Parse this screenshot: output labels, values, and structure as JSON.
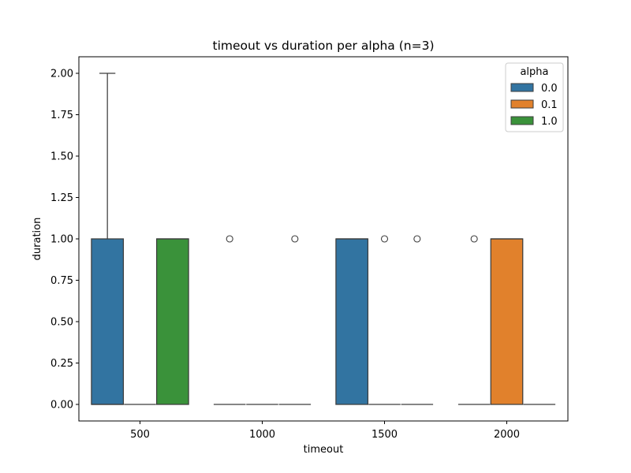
{
  "chart_data": {
    "type": "box",
    "title": "timeout vs duration per alpha (n=3)",
    "xlabel": "timeout",
    "ylabel": "duration",
    "categories": [
      "500",
      "1000",
      "1500",
      "2000"
    ],
    "ylim": [
      -0.1,
      2.1
    ],
    "yticks": [
      0.0,
      0.25,
      0.5,
      0.75,
      1.0,
      1.25,
      1.5,
      1.75,
      2.0
    ],
    "ytick_labels": [
      "0.00",
      "0.25",
      "0.50",
      "0.75",
      "1.00",
      "1.25",
      "1.50",
      "1.75",
      "2.00"
    ],
    "legend": {
      "title": "alpha",
      "position": "top-right"
    },
    "series": [
      {
        "name": "0.0",
        "color": "#3274a1",
        "boxes": [
          {
            "category": "500",
            "q1": 0,
            "median": 0,
            "q3": 1,
            "whisker_low": 0,
            "whisker_high": 2,
            "outliers": []
          },
          {
            "category": "1000",
            "q1": 0,
            "median": 0,
            "q3": 0,
            "whisker_low": 0,
            "whisker_high": 0,
            "outliers": [
              1
            ]
          },
          {
            "category": "1500",
            "q1": 0,
            "median": 1,
            "q3": 1,
            "whisker_low": 0,
            "whisker_high": 1,
            "outliers": []
          },
          {
            "category": "2000",
            "q1": 0,
            "median": 0,
            "q3": 0,
            "whisker_low": 0,
            "whisker_high": 0,
            "outliers": [
              1
            ]
          }
        ]
      },
      {
        "name": "0.1",
        "color": "#e1812c",
        "boxes": [
          {
            "category": "500",
            "q1": 0,
            "median": 0,
            "q3": 0,
            "whisker_low": 0,
            "whisker_high": 0,
            "outliers": []
          },
          {
            "category": "1000",
            "q1": 0,
            "median": 0,
            "q3": 0,
            "whisker_low": 0,
            "whisker_high": 0,
            "outliers": []
          },
          {
            "category": "1500",
            "q1": 0,
            "median": 0,
            "q3": 0,
            "whisker_low": 0,
            "whisker_high": 0,
            "outliers": [
              1
            ]
          },
          {
            "category": "2000",
            "q1": 0,
            "median": 1,
            "q3": 1,
            "whisker_low": 0,
            "whisker_high": 1,
            "outliers": []
          }
        ]
      },
      {
        "name": "1.0",
        "color": "#3a923a",
        "boxes": [
          {
            "category": "500",
            "q1": 0,
            "median": 1,
            "q3": 1,
            "whisker_low": 0,
            "whisker_high": 1,
            "outliers": []
          },
          {
            "category": "1000",
            "q1": 0,
            "median": 0,
            "q3": 0,
            "whisker_low": 0,
            "whisker_high": 0,
            "outliers": [
              1
            ]
          },
          {
            "category": "1500",
            "q1": 0,
            "median": 0,
            "q3": 0,
            "whisker_low": 0,
            "whisker_high": 0,
            "outliers": [
              1
            ]
          },
          {
            "category": "2000",
            "q1": 0,
            "median": 0,
            "q3": 0,
            "whisker_low": 0,
            "whisker_high": 0,
            "outliers": []
          }
        ]
      }
    ]
  }
}
